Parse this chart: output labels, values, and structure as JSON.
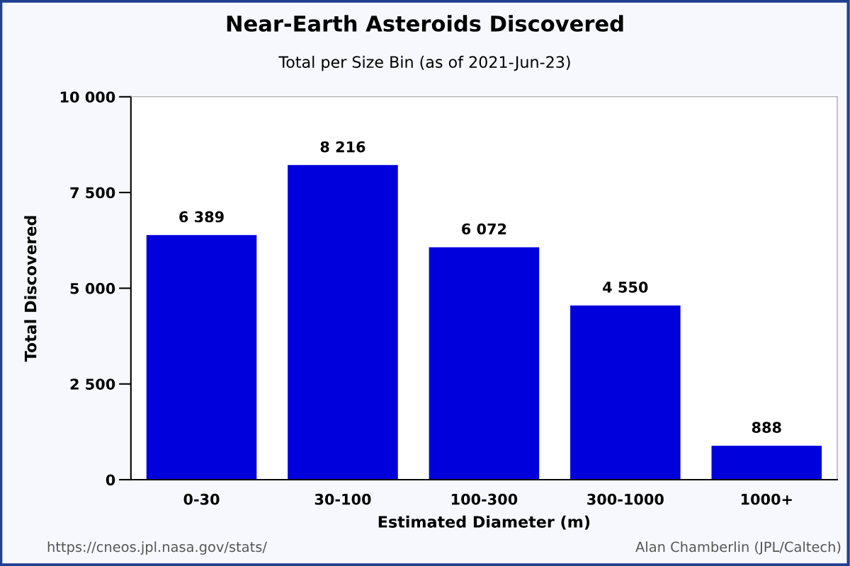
{
  "chart_data": {
    "type": "bar",
    "title": "Near-Earth Asteroids Discovered",
    "subtitle": "Total per Size Bin (as of 2021-Jun-23)",
    "xlabel": "Estimated Diameter (m)",
    "ylabel": "Total Discovered",
    "categories": [
      "0-30",
      "30-100",
      "100-300",
      "300-1000",
      "1000+"
    ],
    "values": [
      6389,
      8216,
      6072,
      4550,
      888
    ],
    "value_labels": [
      "6 389",
      "8 216",
      "6 072",
      "4 550",
      "888"
    ],
    "color": "#0000dd",
    "ylim": [
      0,
      10000
    ],
    "yticks": [
      0,
      {
        "value": 2500,
        "label": "2 500"
      },
      {
        "value": 5000,
        "label": "5 000"
      },
      {
        "value": 7500,
        "label": "7 500"
      },
      {
        "value": 10000,
        "label": "10 000"
      }
    ],
    "grid": false,
    "legend": false,
    "annotations": [
      "https://cneos.jpl.nasa.gov/stats/",
      "Alan Chamberlin (JPL/Caltech)"
    ]
  }
}
